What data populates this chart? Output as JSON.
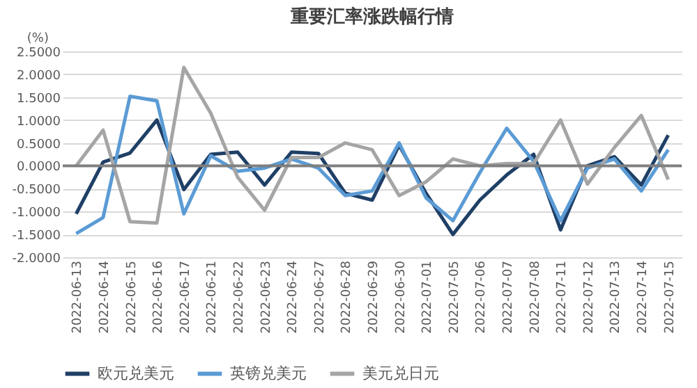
{
  "chart_data": {
    "type": "line",
    "title": "重要汇率涨跌幅行情",
    "ylabel": "(%)",
    "categories": [
      "2022-06-13",
      "2022-06-14",
      "2022-06-15",
      "2022-06-16",
      "2022-06-17",
      "2022-06-21",
      "2022-06-22",
      "2022-06-23",
      "2022-06-24",
      "2022-06-27",
      "2022-06-28",
      "2022-06-29",
      "2022-06-30",
      "2022-07-01",
      "2022-07-05",
      "2022-07-06",
      "2022-07-07",
      "2022-07-08",
      "2022-07-11",
      "2022-07-12",
      "2022-07-13",
      "2022-07-14",
      "2022-07-15"
    ],
    "series": [
      {
        "name": "欧元兑美元",
        "color": "#1f3f66",
        "values": [
          -1.05,
          0.08,
          0.28,
          1.0,
          -0.52,
          0.25,
          0.3,
          -0.42,
          0.3,
          0.27,
          -0.6,
          -0.75,
          0.45,
          -0.6,
          -1.5,
          -0.75,
          -0.2,
          0.25,
          -1.4,
          0.0,
          0.2,
          -0.42,
          0.67
        ]
      },
      {
        "name": "英镑兑美元",
        "color": "#5b9bd5",
        "values": [
          -1.48,
          -1.13,
          1.52,
          1.42,
          -1.05,
          0.22,
          -0.12,
          -0.05,
          0.15,
          -0.05,
          -0.65,
          -0.55,
          0.5,
          -0.7,
          -1.2,
          -0.15,
          0.82,
          0.1,
          -1.2,
          -0.05,
          0.15,
          -0.55,
          0.35
        ]
      },
      {
        "name": "美元兑日元",
        "color": "#a5a5a5",
        "values": [
          0.0,
          0.78,
          -1.22,
          -1.25,
          2.15,
          1.15,
          -0.25,
          -0.97,
          0.18,
          0.18,
          0.5,
          0.35,
          -0.65,
          -0.35,
          0.15,
          0.0,
          0.05,
          0.05,
          1.0,
          -0.4,
          0.4,
          1.1,
          -0.3
        ]
      }
    ],
    "ylim": [
      -2.0,
      2.5
    ],
    "yticks": [
      {
        "value": -2.0,
        "label": "-2.0000"
      },
      {
        "value": -1.5,
        "label": "-1.5000"
      },
      {
        "value": -1.0,
        "label": "-1.0000"
      },
      {
        "value": -0.5,
        "label": "-0.5000"
      },
      {
        "value": 0.0,
        "label": "0.0000"
      },
      {
        "value": 0.5,
        "label": "0.5000"
      },
      {
        "value": 1.0,
        "label": "1.0000"
      },
      {
        "value": 1.5,
        "label": "1.5000"
      },
      {
        "value": 2.0,
        "label": "2.0000"
      },
      {
        "value": 2.5,
        "label": "2.5000"
      }
    ],
    "ref_lines": [
      {
        "axis": "y",
        "value": 0.0,
        "color": "#7f7f7f"
      }
    ],
    "grid": "y",
    "legend": "bottom",
    "marker": "none",
    "line_style": "solid"
  }
}
